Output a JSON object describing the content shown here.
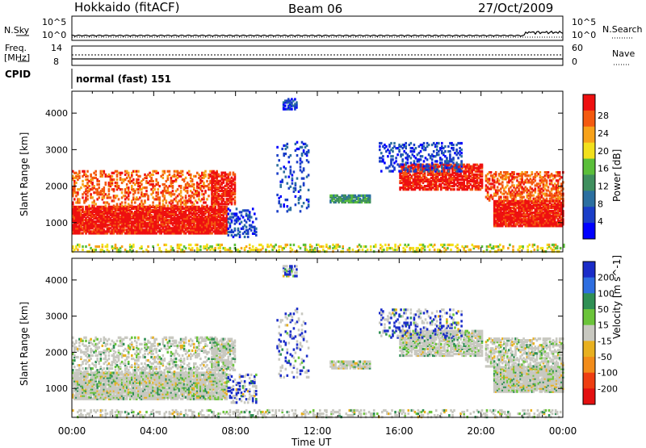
{
  "header": {
    "radar": "Hokkaido (fitACF)",
    "beam": "Beam 06",
    "date": "27/Oct/2009"
  },
  "noise_panel": {
    "left_label": "N.Sky",
    "right_label": "N.Search",
    "left_ticks": [
      "10^5",
      "10^0"
    ],
    "right_ticks": [
      "10^5",
      "10^0"
    ]
  },
  "freq_panel": {
    "left_label_top": "Freq.",
    "left_label_unit": "[MHz]",
    "right_label": "Nave",
    "left_ticks": [
      "14",
      "8"
    ],
    "right_ticks": [
      "60",
      "0"
    ]
  },
  "cpid": {
    "label": "CPID",
    "value": "normal (fast) 151"
  },
  "colors": {
    "power": [
      "#0000ff",
      "#1a3ec8",
      "#2b6fa0",
      "#3f8f5e",
      "#5bbf3a",
      "#f2e01c",
      "#f7a21a",
      "#f45a10",
      "#ee1010"
    ],
    "velocity": [
      "#1a2cc8",
      "#2e6ee0",
      "#2f8f54",
      "#6bc43a",
      "#c8c8c0",
      "#e8b020",
      "#f28c1a",
      "#ee3e12",
      "#e31010"
    ]
  },
  "chart_data": [
    {
      "type": "heatmap",
      "name": "power",
      "ylabel": "Slant Range [km]",
      "yticks": [
        "1000",
        "2000",
        "3000",
        "4000"
      ],
      "ylim": [
        200,
        4600
      ],
      "colorbar": {
        "label": "Power [dB]",
        "ticks": [
          "4",
          "8",
          "12",
          "16",
          "20",
          "24",
          "28"
        ]
      }
    },
    {
      "type": "heatmap",
      "name": "velocity",
      "ylabel": "Slant Range [km]",
      "yticks": [
        "1000",
        "2000",
        "3000",
        "4000"
      ],
      "ylim": [
        200,
        4600
      ],
      "colorbar": {
        "label": "Velocity [m s^-1]",
        "ticks": [
          "200",
          "100",
          "50",
          "15",
          "-15",
          "-50",
          "-100",
          "-200"
        ]
      }
    },
    {
      "type": "axis",
      "xlabel": "Time UT",
      "xticks": [
        "00:00",
        "04:00",
        "08:00",
        "12:00",
        "16:00",
        "20:00",
        "00:00"
      ],
      "xlim_hours": [
        0,
        24
      ]
    }
  ]
}
